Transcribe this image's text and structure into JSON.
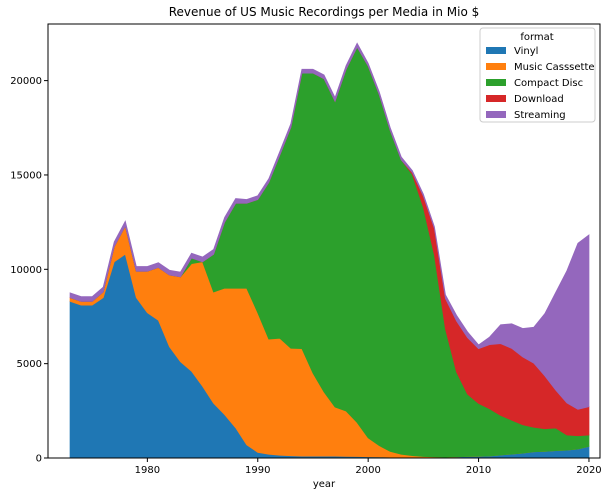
{
  "chart_data": {
    "type": "area",
    "stacked": true,
    "title": "Revenue of US Music Recordings per Media in Mio $",
    "xlabel": "year",
    "ylabel": "",
    "xlim": [
      1971,
      2021
    ],
    "ylim": [
      0,
      23000
    ],
    "xticks": [
      1980,
      1990,
      2000,
      2010,
      2020
    ],
    "yticks": [
      0,
      5000,
      10000,
      15000,
      20000
    ],
    "grid": false,
    "legend": {
      "title": "format",
      "placement": "top-right"
    },
    "x": [
      1973,
      1974,
      1975,
      1976,
      1977,
      1978,
      1979,
      1980,
      1981,
      1982,
      1983,
      1984,
      1985,
      1986,
      1987,
      1988,
      1989,
      1990,
      1991,
      1992,
      1993,
      1994,
      1995,
      1996,
      1997,
      1998,
      1999,
      2000,
      2001,
      2002,
      2003,
      2004,
      2005,
      2006,
      2007,
      2008,
      2009,
      2010,
      2011,
      2012,
      2013,
      2014,
      2015,
      2016,
      2017,
      2018,
      2019,
      2020
    ],
    "series": [
      {
        "name": "Vinyl",
        "color": "#1f77b4",
        "values": [
          8300,
          8100,
          8100,
          8500,
          10400,
          10800,
          8500,
          7700,
          7300,
          5900,
          5100,
          4600,
          3800,
          2900,
          2300,
          1600,
          700,
          300,
          200,
          150,
          120,
          100,
          100,
          100,
          100,
          90,
          80,
          70,
          60,
          50,
          50,
          50,
          40,
          40,
          40,
          60,
          80,
          90,
          110,
          160,
          210,
          260,
          330,
          350,
          390,
          420,
          480,
          620
        ]
      },
      {
        "name": "Music Casssette",
        "color": "#ff7f0e",
        "values": [
          200,
          200,
          200,
          300,
          800,
          1500,
          1400,
          2200,
          2800,
          3800,
          4500,
          5700,
          6600,
          5900,
          6700,
          7400,
          8300,
          7400,
          6100,
          6200,
          5700,
          5700,
          4400,
          3400,
          2600,
          2400,
          1800,
          1000,
          600,
          300,
          150,
          80,
          40,
          20,
          10,
          5,
          3,
          2,
          0,
          0,
          0,
          0,
          0,
          0,
          0,
          0,
          0,
          0
        ]
      },
      {
        "name": "Compact Disc",
        "color": "#2ca02c",
        "values": [
          0,
          0,
          0,
          0,
          0,
          0,
          0,
          0,
          0,
          0,
          0,
          300,
          0,
          2000,
          3500,
          4500,
          4500,
          6000,
          8300,
          9700,
          11700,
          14600,
          15900,
          16600,
          16200,
          18100,
          19900,
          19700,
          18600,
          17000,
          15600,
          14900,
          13200,
          10700,
          6800,
          4500,
          3300,
          2800,
          2500,
          2100,
          1800,
          1500,
          1300,
          1200,
          1200,
          800,
          700,
          600
        ]
      },
      {
        "name": "Download",
        "color": "#d62728",
        "values": [
          0,
          0,
          0,
          0,
          0,
          0,
          0,
          0,
          0,
          0,
          0,
          0,
          0,
          0,
          0,
          0,
          0,
          0,
          0,
          0,
          0,
          0,
          0,
          0,
          0,
          0,
          0,
          0,
          0,
          0,
          0,
          100,
          600,
          1400,
          1600,
          2700,
          3000,
          2900,
          3400,
          3800,
          3800,
          3600,
          3400,
          2800,
          2000,
          1700,
          1400,
          1500
        ]
      },
      {
        "name": "Streaming",
        "color": "#9467bd",
        "values": [
          250,
          250,
          250,
          250,
          250,
          250,
          250,
          250,
          250,
          250,
          250,
          250,
          250,
          250,
          250,
          250,
          200,
          200,
          200,
          200,
          200,
          200,
          200,
          200,
          200,
          200,
          200,
          150,
          150,
          150,
          150,
          100,
          100,
          100,
          200,
          300,
          300,
          200,
          400,
          1000,
          1300,
          1500,
          1900,
          3300,
          5200,
          7000,
          8800,
          9100
        ]
      }
    ]
  }
}
